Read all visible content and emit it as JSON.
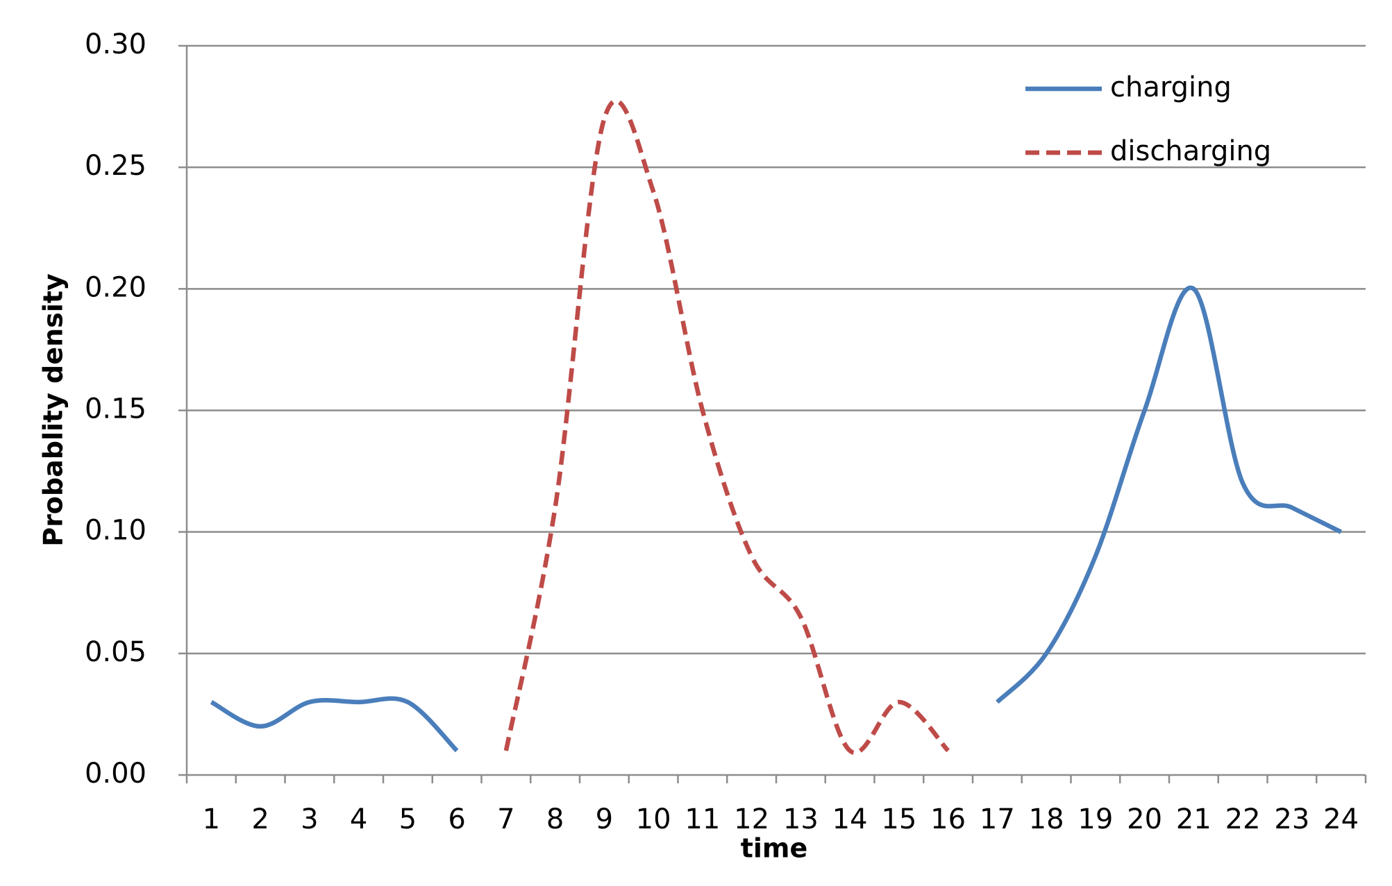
{
  "chart_data": {
    "type": "line",
    "x_label": "time",
    "y_label": "Probablity density",
    "categories": [
      1,
      2,
      3,
      4,
      5,
      6,
      7,
      8,
      9,
      10,
      11,
      12,
      13,
      14,
      15,
      16,
      17,
      18,
      19,
      20,
      21,
      22,
      23,
      24
    ],
    "series": [
      {
        "name": "charging",
        "color": "#4a7ebb",
        "style": "solid",
        "values": [
          0.03,
          0.02,
          0.03,
          0.03,
          0.03,
          0.01,
          null,
          null,
          null,
          null,
          null,
          null,
          null,
          null,
          null,
          null,
          0.03,
          0.05,
          0.09,
          0.15,
          0.2,
          0.12,
          0.11,
          0.1
        ]
      },
      {
        "name": "discharging",
        "color": "#be4b48",
        "style": "dashed",
        "values": [
          null,
          null,
          null,
          null,
          null,
          null,
          0.01,
          0.11,
          0.27,
          0.24,
          0.15,
          0.09,
          0.065,
          0.01,
          0.03,
          0.01,
          null,
          null,
          null,
          null,
          null,
          null,
          null,
          null
        ]
      }
    ],
    "ylim": [
      0,
      0.3
    ],
    "yticks": [
      {
        "value": 0,
        "label": "0.00"
      },
      0.05,
      {
        "value": 0.1,
        "label": "0.10"
      },
      0.15,
      {
        "value": 0.2,
        "label": "0.20"
      },
      0.25,
      {
        "value": 0.3,
        "label": "0.30"
      }
    ],
    "grid": true,
    "legend": "top-right"
  }
}
